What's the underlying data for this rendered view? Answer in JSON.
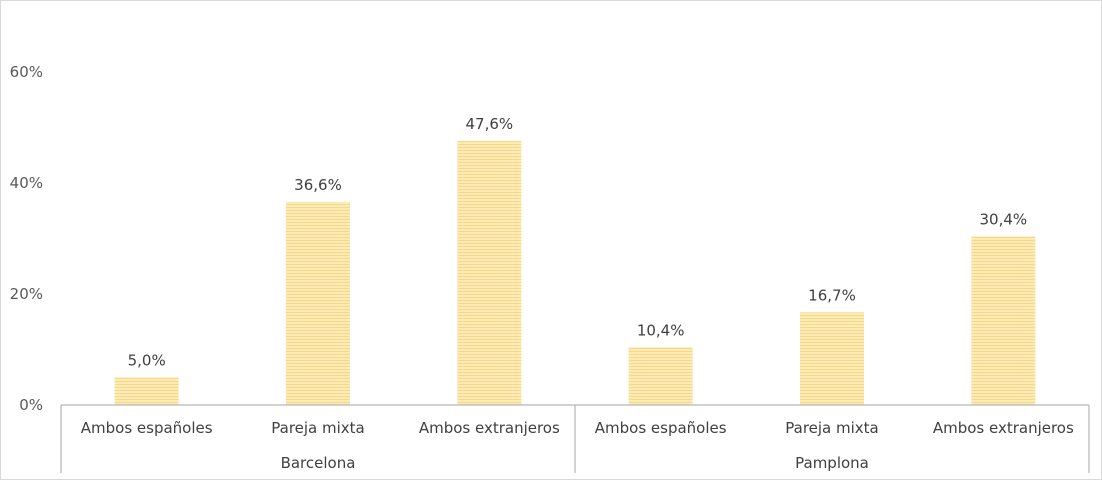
{
  "chart_data": {
    "type": "bar",
    "groups": [
      {
        "name": "Barcelona",
        "categories": [
          "Ambos españoles",
          "Pareja mixta",
          "Ambos extranjeros"
        ],
        "values": [
          5.0,
          36.6,
          47.6
        ],
        "labels": [
          "5,0%",
          "36,6%",
          "47,6%"
        ]
      },
      {
        "name": "Pamplona",
        "categories": [
          "Ambos españoles",
          "Pareja mixta",
          "Ambos extranjeros"
        ],
        "values": [
          10.4,
          16.7,
          30.4
        ],
        "labels": [
          "10,4%",
          "16,7%",
          "30,4%"
        ]
      }
    ],
    "y_ticks": [
      0,
      20,
      40,
      60
    ],
    "y_tick_labels": [
      "0%",
      "20%",
      "40%",
      "60%"
    ],
    "ylim": [
      0,
      60
    ],
    "grid": false,
    "legend": "none",
    "bar_color": "#fde7a7",
    "bar_stripe_color": "#f7d98a"
  }
}
